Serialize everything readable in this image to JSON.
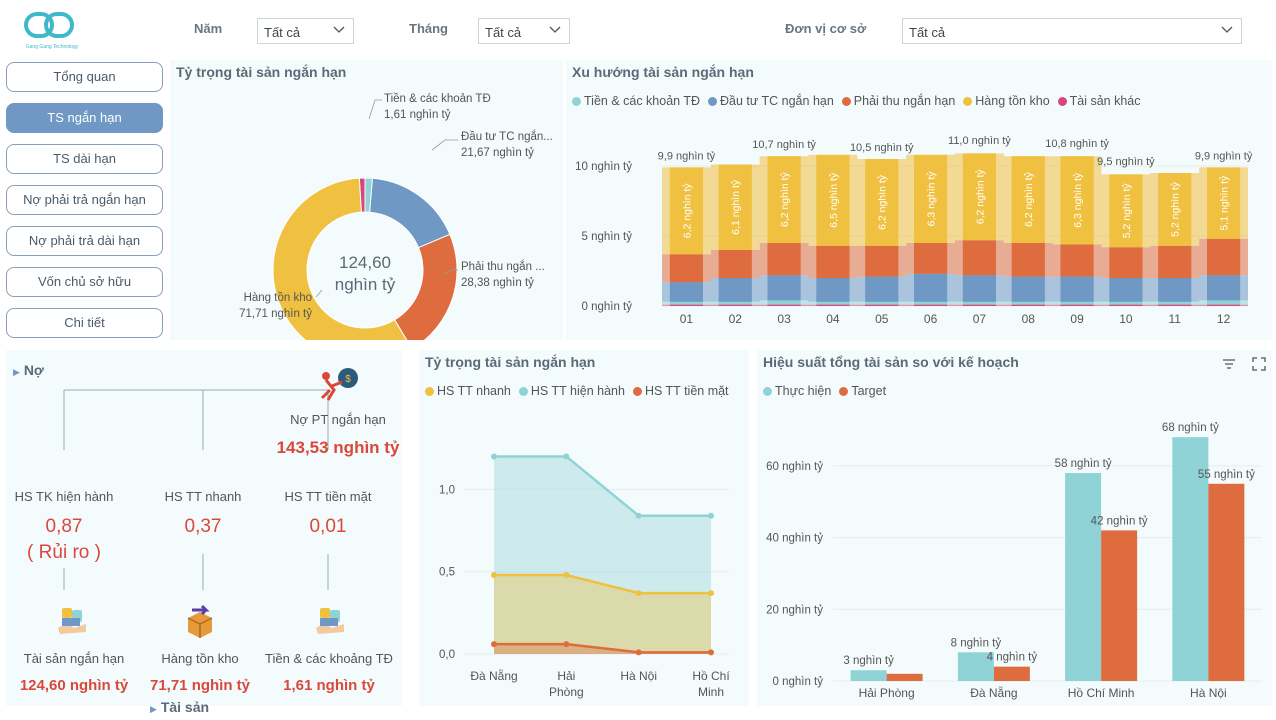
{
  "brand": {
    "logo_text": "Gang Gang Technology"
  },
  "filters": [
    {
      "label": "Năm",
      "value": "Tất cả"
    },
    {
      "label": "Tháng",
      "value": "Tất cả"
    },
    {
      "label": "Đơn vị cơ sở",
      "value": "Tất cả"
    }
  ],
  "nav": [
    {
      "label": "Tổng quan",
      "active": false
    },
    {
      "label": "TS ngắn hạn",
      "active": true
    },
    {
      "label": "TS dài hạn",
      "active": false
    },
    {
      "label": "Nợ phải trả ngắn hạn",
      "active": false
    },
    {
      "label": "Nợ phải trả dài hạn",
      "active": false
    },
    {
      "label": "Vốn chủ sở hữu",
      "active": false
    },
    {
      "label": "Chi tiết",
      "active": false
    }
  ],
  "colors": {
    "cash": "#8fd3d6",
    "invest": "#6f98c4",
    "receivable": "#de6c3f",
    "inventory": "#f0c040",
    "other": "#d9467f",
    "text_red": "#d9483b"
  },
  "donut": {
    "title": "Tỷ trọng tài sản ngắn hạn",
    "center_value": "124,60",
    "center_unit": "nghìn tỷ",
    "slices": [
      {
        "label": "Tiền & các khoản TĐ",
        "value": 1.61,
        "value_label": "1,61 nghìn tỷ",
        "color": "#8fd3d6"
      },
      {
        "label": "Đầu tư TC ngắn...",
        "value": 21.67,
        "value_label": "21,67 nghìn tỷ",
        "color": "#6f98c4"
      },
      {
        "label": "Phải thu ngắn ...",
        "value": 28.38,
        "value_label": "28,38 nghìn tỷ",
        "color": "#de6c3f"
      },
      {
        "label": "Hàng tồn kho",
        "value": 71.71,
        "value_label": "71,71 nghìn tỷ",
        "color": "#f0c040"
      },
      {
        "label": "Tài sản khác",
        "value": 1.23,
        "value_label": "",
        "color": "#d9467f"
      }
    ]
  },
  "chart_data": [
    {
      "type": "area",
      "title": "Xu hướng tài sản ngắn hạn",
      "stacked": true,
      "categories": [
        "01",
        "02",
        "03",
        "04",
        "05",
        "06",
        "07",
        "08",
        "09",
        "10",
        "11",
        "12"
      ],
      "legend": [
        "Tiền & các khoản TĐ",
        "Đầu tư TC ngắn hạn",
        "Phải thu ngắn hạn",
        "Hàng tồn kho",
        "Tài sản khác"
      ],
      "series": [
        {
          "name": "Tài sản khác",
          "color": "#d9467f",
          "values": [
            0.1,
            0.1,
            0.1,
            0.1,
            0.1,
            0.1,
            0.1,
            0.1,
            0.1,
            0.1,
            0.1,
            0.1
          ]
        },
        {
          "name": "Tiền & các khoản TĐ",
          "color": "#8fd3d6",
          "values": [
            0.2,
            0.2,
            0.3,
            0.2,
            0.2,
            0.2,
            0.2,
            0.2,
            0.2,
            0.2,
            0.2,
            0.3
          ]
        },
        {
          "name": "Đầu tư TC ngắn hạn",
          "color": "#6f98c4",
          "values": [
            1.4,
            1.7,
            1.8,
            1.7,
            1.8,
            2.0,
            1.9,
            1.8,
            1.8,
            1.7,
            1.7,
            1.8
          ]
        },
        {
          "name": "Phải thu ngắn hạn",
          "color": "#de6c3f",
          "values": [
            2.0,
            2.0,
            2.3,
            2.3,
            2.2,
            2.2,
            2.5,
            2.4,
            2.3,
            2.2,
            2.3,
            2.6
          ]
        },
        {
          "name": "Hàng tồn kho",
          "color": "#f0c040",
          "values": [
            6.2,
            6.1,
            6.2,
            6.5,
            6.2,
            6.3,
            6.2,
            6.2,
            6.3,
            5.2,
            5.2,
            5.1
          ]
        }
      ],
      "inner_labels": [
        "6,2 nghìn tỷ",
        "6,1 nghìn tỷ",
        "6,2 nghìn tỷ",
        "6,5 nghìn tỷ",
        "6,2 nghìn tỷ",
        "6,3 nghìn tỷ",
        "6,2 nghìn tỷ",
        "6,2 nghìn tỷ",
        "6,3 nghìn tỷ",
        "5,2 nghìn tỷ",
        "5,2 nghìn tỷ",
        "5,1 nghìn tỷ"
      ],
      "totals": [
        9.9,
        10.1,
        10.7,
        10.8,
        10.5,
        10.8,
        11.0,
        10.7,
        10.8,
        9.5,
        9.5,
        9.9
      ],
      "total_labels": [
        "9,9 nghìn tỷ",
        "",
        "10,7 nghìn tỷ",
        "",
        "10,5 nghìn tỷ",
        "",
        "11,0 nghìn tỷ",
        "",
        "10,8 nghìn tỷ",
        "9,5 nghìn tỷ",
        "",
        "9,9 nghìn tỷ"
      ],
      "ylim": [
        0,
        12
      ],
      "yticks": [
        {
          "v": 10,
          "label": "10 nghìn tỷ"
        },
        {
          "v": 5,
          "label": "5 nghìn tỷ"
        },
        {
          "v": 0,
          "label": "0 nghìn tỷ"
        }
      ]
    },
    {
      "type": "area",
      "title": "Tỷ trọng tài sản ngắn hạn",
      "stacked": false,
      "categories": [
        "Đà Nẵng",
        "Hải Phòng",
        "Hà Nội",
        "Hồ Chí Minh"
      ],
      "series": [
        {
          "name": "HS TT nhanh",
          "color": "#f0c040",
          "values": [
            0.48,
            0.48,
            0.37,
            0.37
          ]
        },
        {
          "name": "HS TT hiện hành",
          "color": "#8fd3d6",
          "values": [
            1.2,
            1.2,
            0.84,
            0.84
          ]
        },
        {
          "name": "HS TT tiền mặt",
          "color": "#de6c3f",
          "values": [
            0.06,
            0.06,
            0.01,
            0.01
          ]
        }
      ],
      "ylim": [
        0,
        1.3
      ],
      "yticks": [
        {
          "v": 1.0,
          "label": "1,0"
        },
        {
          "v": 0.5,
          "label": "0,5"
        },
        {
          "v": 0.0,
          "label": "0,0"
        }
      ]
    },
    {
      "type": "bar",
      "title": "Hiệu suất tổng tài sản so với kế hoạch",
      "categories": [
        "Hải Phòng",
        "Đà Nẵng",
        "Hồ Chí Minh",
        "Hà Nội"
      ],
      "series": [
        {
          "name": "Thực hiện",
          "color": "#8fd3d6",
          "values": [
            3,
            8,
            58,
            68
          ],
          "labels": [
            "3 nghìn tỷ",
            "8 nghìn tỷ",
            "58 nghìn tỷ",
            "68 nghìn tỷ"
          ]
        },
        {
          "name": "Target",
          "color": "#de6c3f",
          "values": [
            2,
            4,
            42,
            55
          ],
          "labels": [
            "",
            "4 nghìn tỷ",
            "42 nghìn tỷ",
            "55 nghìn tỷ"
          ]
        }
      ],
      "ylim": [
        0,
        70
      ],
      "yticks": [
        {
          "v": 60,
          "label": "60 nghìn tỷ"
        },
        {
          "v": 40,
          "label": "40 nghìn tỷ"
        },
        {
          "v": 20,
          "label": "20 nghìn tỷ"
        },
        {
          "v": 0,
          "label": "0 nghìn tỷ"
        }
      ]
    }
  ],
  "tree": {
    "header_no": "Nợ",
    "header_ts": "Tài sản",
    "root_label": "Nợ PT ngắn hạn",
    "root_value": "143,53 nghìn tỷ",
    "ratios": [
      {
        "label": "HS TK hiện hành",
        "value": "0,87",
        "note": "( Rủi ro )"
      },
      {
        "label": "HS TT nhanh",
        "value": "0,37",
        "note": ""
      },
      {
        "label": "HS TT tiền mặt",
        "value": "0,01",
        "note": ""
      }
    ],
    "assets": [
      {
        "label": "Tài sản ngắn hạn",
        "value": "124,60 nghìn tỷ"
      },
      {
        "label": "Hàng tồn kho",
        "value": "71,71 nghìn tỷ"
      },
      {
        "label": "Tiền & các khoảng TĐ",
        "value": "1,61 nghìn tỷ"
      }
    ]
  }
}
